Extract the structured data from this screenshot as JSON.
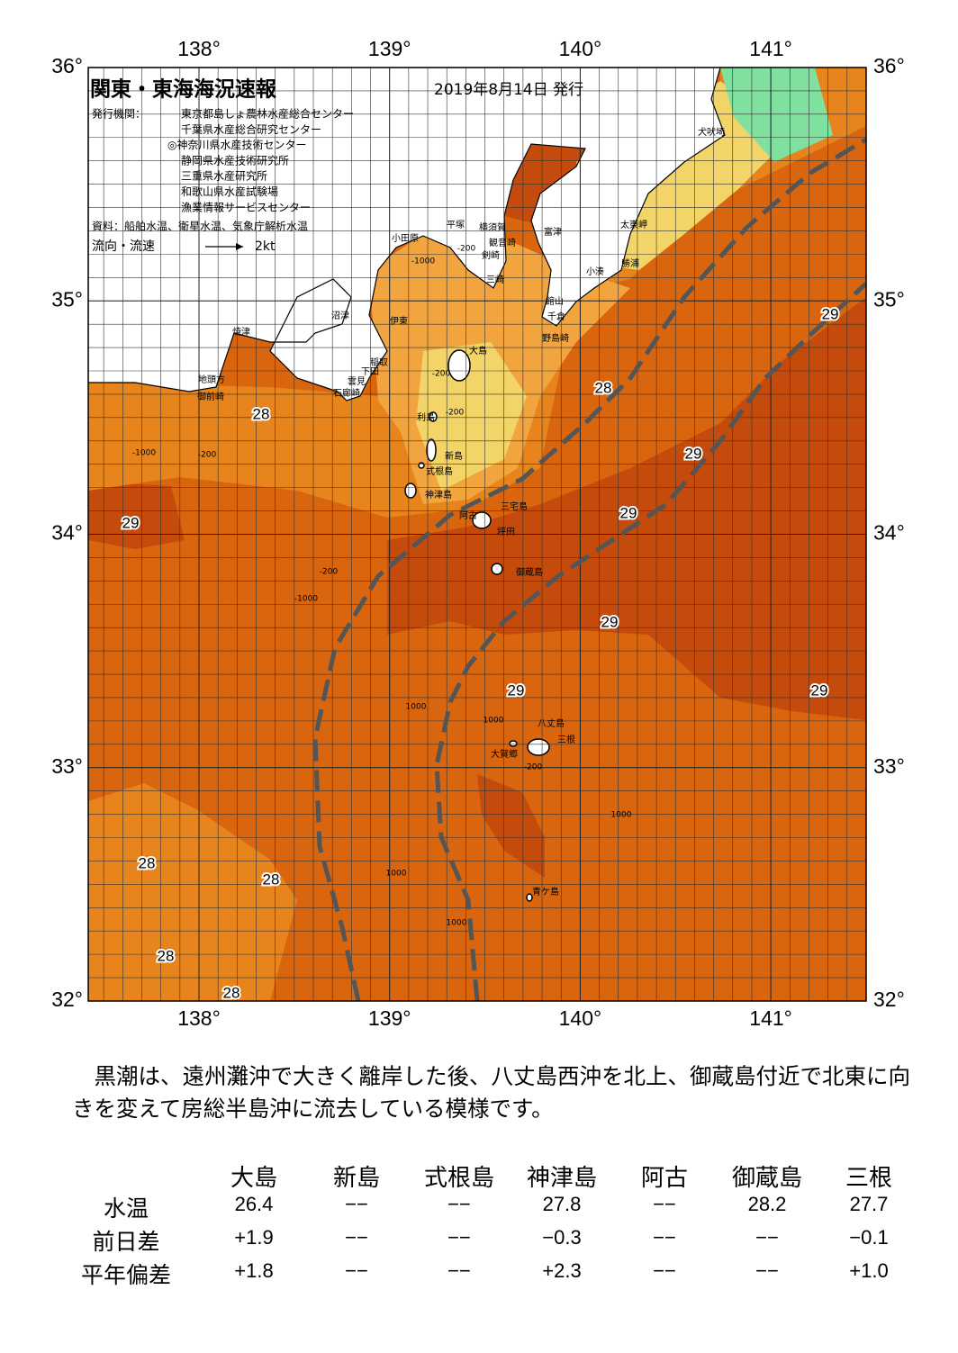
{
  "map": {
    "title": "関東・東海海況速報",
    "date": "2019年8月14日 発行",
    "issuer_label": "発行機関：",
    "issuers": [
      "東京都島しょ農林水産総合センター",
      "千葉県水産総合研究センター",
      "◎神奈川県水産技術センター",
      "静岡県水産技術研究所",
      "三重県水産研究所",
      "和歌山県水産試験場",
      "漁業情報サービスセンター"
    ],
    "source": "資料：船舶水温、衛星水温、気象庁解析水温",
    "current_legend": "流向・流速",
    "current_speed": "2kt",
    "lon_ticks": [
      {
        "value": 138,
        "label": "138°"
      },
      {
        "value": 139,
        "label": "139°"
      },
      {
        "value": 140,
        "label": "140°"
      },
      {
        "value": 141,
        "label": "141°"
      }
    ],
    "lat_ticks": [
      {
        "value": 36,
        "label": "36°"
      },
      {
        "value": 35,
        "label": "35°"
      },
      {
        "value": 34,
        "label": "34°"
      },
      {
        "value": 33,
        "label": "33°"
      },
      {
        "value": 32,
        "label": "32°"
      }
    ],
    "place_names": [
      "犬吠埼",
      "太東岬",
      "勝浦",
      "小湊",
      "館山",
      "千倉",
      "野島崎",
      "富津",
      "横須賀",
      "観音崎",
      "剣崎",
      "三崎",
      "平塚",
      "小田原",
      "沼津",
      "伊東",
      "焼津",
      "稲取",
      "下田",
      "雲見",
      "石廊崎",
      "地頭方",
      "御前崎",
      "大島",
      "利島",
      "新島",
      "式根島",
      "神津島",
      "三宅島",
      "阿古",
      "坪田",
      "御蔵島",
      "八丈島",
      "三根",
      "大賀郷",
      "青ケ島"
    ],
    "temperature_labels": [
      28,
      28,
      28,
      28,
      28,
      28,
      29,
      29,
      29,
      29,
      29,
      29,
      29
    ],
    "depth_labels": [
      -200,
      -1000,
      -200,
      -200,
      -200,
      -1000,
      -200,
      -1000,
      1000,
      1000,
      -200,
      1000,
      1000,
      1000
    ]
  },
  "summary": "黒潮は、遠州灘沖で大きく離岸した後、八丈島西沖を北上、御蔵島付近で北東に向きを変えて房総半島沖に流去している模様です。",
  "table": {
    "stations": [
      "大島",
      "新島",
      "式根島",
      "神津島",
      "阿古",
      "御蔵島",
      "三根"
    ],
    "rows": [
      {
        "label": "水温",
        "values": [
          "26.4",
          "−−",
          "−−",
          "27.8",
          "−−",
          "28.2",
          "27.7"
        ]
      },
      {
        "label": "前日差",
        "values": [
          "+1.9",
          "−−",
          "−−",
          "−0.3",
          "−−",
          "−−",
          "−0.1"
        ]
      },
      {
        "label": "平年偏差",
        "values": [
          "+1.8",
          "−−",
          "−−",
          "+2.3",
          "−−",
          "−−",
          "+1.0"
        ]
      }
    ]
  }
}
